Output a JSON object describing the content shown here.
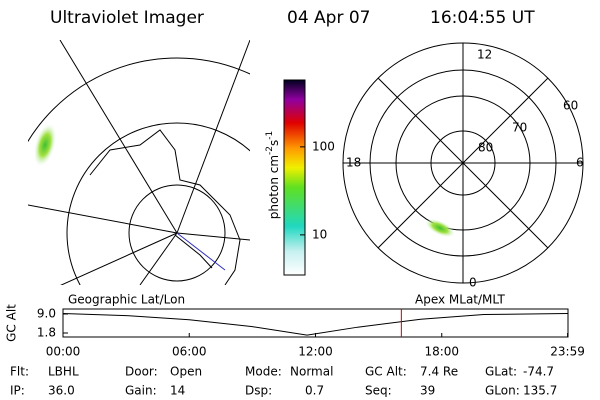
{
  "header": {
    "instrument": "Ultraviolet Imager",
    "date": "04 Apr 07",
    "time": "16:04:55 UT"
  },
  "colorbar": {
    "label": [
      "photon cm",
      "-2",
      "s",
      "-1"
    ],
    "log": true,
    "clim": [
      3.5,
      575
    ],
    "ticks": [
      10,
      100
    ]
  },
  "polar_grid": {
    "labels": [
      "12",
      "60",
      "70",
      "80",
      "18",
      "6",
      "0"
    ]
  },
  "altitude_plot": {
    "ylabel": "GC Alt",
    "left_title": "Geographic Lat/Lon",
    "right_title": "Apex MLat/MLT",
    "xlim": [
      0,
      24
    ],
    "ylim": [
      0.28,
      10.9
    ],
    "xticks": [
      {
        "value": 0,
        "label": "00:00"
      },
      {
        "value": 6,
        "label": "06:00"
      },
      {
        "value": 12,
        "label": "12:00"
      },
      {
        "value": 18,
        "label": "18:00"
      },
      {
        "value": 23.98,
        "label": "23:59"
      }
    ],
    "yticks": [
      {
        "value": 9,
        "label": "9.0"
      },
      1.8
    ],
    "x": [
      0,
      3,
      6,
      9,
      11.6,
      14,
      17,
      20,
      23.98
    ],
    "values": [
      9.2,
      8.4,
      6.8,
      4.2,
      1.0,
      4.0,
      7.0,
      8.8,
      9.2
    ],
    "marker_hour": 16.08,
    "marker_color": "#cc0000"
  },
  "info": [
    [
      [
        "Flt:",
        "LBHL"
      ],
      [
        "Door:",
        "Open"
      ],
      [
        "Mode:",
        "Normal"
      ],
      [
        "GC Alt:",
        "7.4 Re"
      ],
      [
        "GLat:",
        "-74.7"
      ]
    ],
    [
      [
        "IP:",
        "36.0"
      ],
      [
        "Gain:",
        "14"
      ],
      [
        "Dsp:",
        "0.7"
      ],
      [
        "Seq:",
        "39"
      ],
      [
        "GLon:",
        "135.7"
      ]
    ]
  ]
}
